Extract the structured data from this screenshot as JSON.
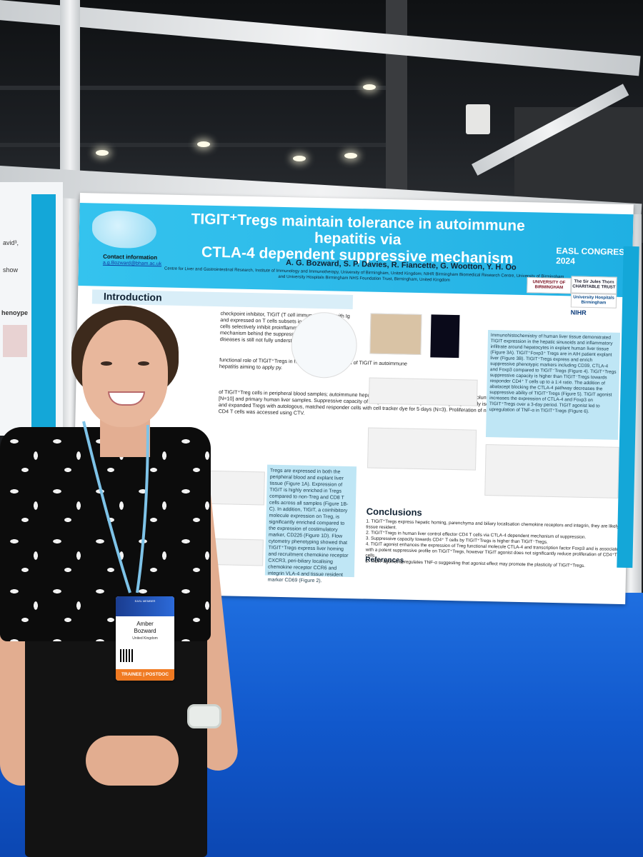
{
  "poster": {
    "title_line1": "TIGIT⁺Tregs maintain tolerance in autoimmune hepatitis via",
    "title_line2": "CTLA-4 dependent suppressive mechanism",
    "authors": "A. G. Bozward, S. P. Davies, R. Fiancette, G. Wootton, Y. H. Oo",
    "affiliation": "Centre for Liver and Gastrointestinal Research, Institute of Immunology and Immunotherapy, University of Birmingham, United Kingdom; NIHR Birmingham Biomedical Research Centre, University of Birmingham and University Hospitals Birmingham NHS Foundation Trust, Birmingham, United Kingdom",
    "contact_heading": "Contact information",
    "contact_email": "a.g.Bozward@bham.ac.uk",
    "congress": "EASL CONGRESS",
    "congress_year": "2024",
    "logos": {
      "uob": "UNIVERSITY OF BIRMINGHAM",
      "sjt": "The Sir Jules Thorn CHARITABLE TRUST",
      "uhb": "University Hospitals Birmingham",
      "nihr": "NIHR"
    },
    "intro_heading": "Introduction",
    "intro_text": "checkpoint inhibitor, TIGIT (T cell immunoreceptor with Ig and expressed on T cells subsets including T regulatory cells selectively inhibit proinflammatory Th1 and Th17 mechanism behind the suppressive abilities in human diseases is still not fully understood.",
    "intro_aims": "functional role of TIGIT⁺Tregs in human livers (2) and pect of TIGIT in autoimmune hepatitis aiming to apply py.",
    "methods_text": "of TIGIT⁺Treg cells in peripheral blood samples; autoimmune hepatitis (AIH) [N=12], control [N=10]; and healthy volunteer [N=10] and primary human liver samples. Suppressive capacity of Tregs was accessed by co-culturing magnetically isolated and expanded Tregs with autologous, matched responder cells with cell tracker dye for 5 days (N=3). Proliferation of non-Treg CD4 T cells was accessed using CTV.",
    "results_box": "Tregs are expressed in both the peripheral blood and explant liver tissue (Figure 1A). Expression of TIGIT is highly enriched in Tregs compared to non-Treg and CD8 T cells across all samples (Figure 1B-C). In addition, TIGIT, a coinhibitory molecule expression on Treg, is significantly enriched compared to the expression of costimulatory marker, CD226 (Figure 1D). Flow cytometry phenotyping showed that TIGIT⁺Tregs express liver homing and recruitment chemokine receptor CXCR3, peri-biliary localising chemokine receptor CCR6 and integrin VLA-4 and tissue resident marker CD69 (Figure 2).",
    "right_box": "Immunohistochemistry of human liver tissue demonstrated TIGIT expression in the hepatic sinusoids and inflammatory infiltrate around hepatocytes in explant human liver tissue (Figure 3A). TIGIT⁺Foxp3⁺ Tregs are in AIH patient explant liver (Figure 3B). TIGIT⁺Tregs express and enrich suppressive phenotypic markers including CD39, CTLA-4 and Foxp3 compared to TIGIT⁻Tregs (Figure 4). TIGIT⁺Tregs suppressive capacity is higher than TIGIT⁻Tregs towards responder CD4⁺ T cells up to a 1:4 ratio. The addition of abatacept blocking the CTLA-4 pathway decreases the suppressive ability of TIGIT⁺Tregs (Figure 5). TIGIT agonist increases the expression of CTLA-4 and Foxp3 on TIGIT⁺Tregs over a 3-day period. TIGIT agonist led to upregulation of TNF-α in TIGIT⁺Tregs (Figure 6).",
    "conclusions_heading": "Conclusions",
    "conclusions": [
      "1. TIGIT⁺Tregs express hepatic homing, parenchyma and biliary localisation chemokine receptors and integrin, they are likely tissue resident.",
      "2. TIGIT⁺Tregs in human liver control effector CD4 T cells via CTLA-4 dependent mechanism of suppression.",
      "3. Suppressive capacity towards CD4⁺ T cells by TIGIT⁺Tregs is higher than TIGIT⁻Tregs.",
      "4. TIGIT agonist enhances the expression of Treg functional molecule CTLA-4 and transcription factor Foxp3 and is associated with a potent suppressive profile on TIGIT⁺Tregs, however TIGIT agonist does not significantly reduce proliferation of CD4⁺T cells.",
      "5. TIGIT agonist upregulates TNF-α suggesting that agonist effect may promote the plasticity of TIGIT⁺Tregs."
    ],
    "references_heading": "References"
  },
  "badge": {
    "role": "EASL MEMBER",
    "first_name": "Amber",
    "last_name": "Bozward",
    "country": "United Kingdom",
    "ribbon": "TRAINEE | POSTDOC"
  },
  "left_poster": {
    "snippet1": "avid³,",
    "snippet2": "show",
    "snippet3": "henoype"
  },
  "colors": {
    "poster_header": "#2bb8e8",
    "carpet": "#1158cc",
    "badge_ribbon": "#f07a22"
  }
}
